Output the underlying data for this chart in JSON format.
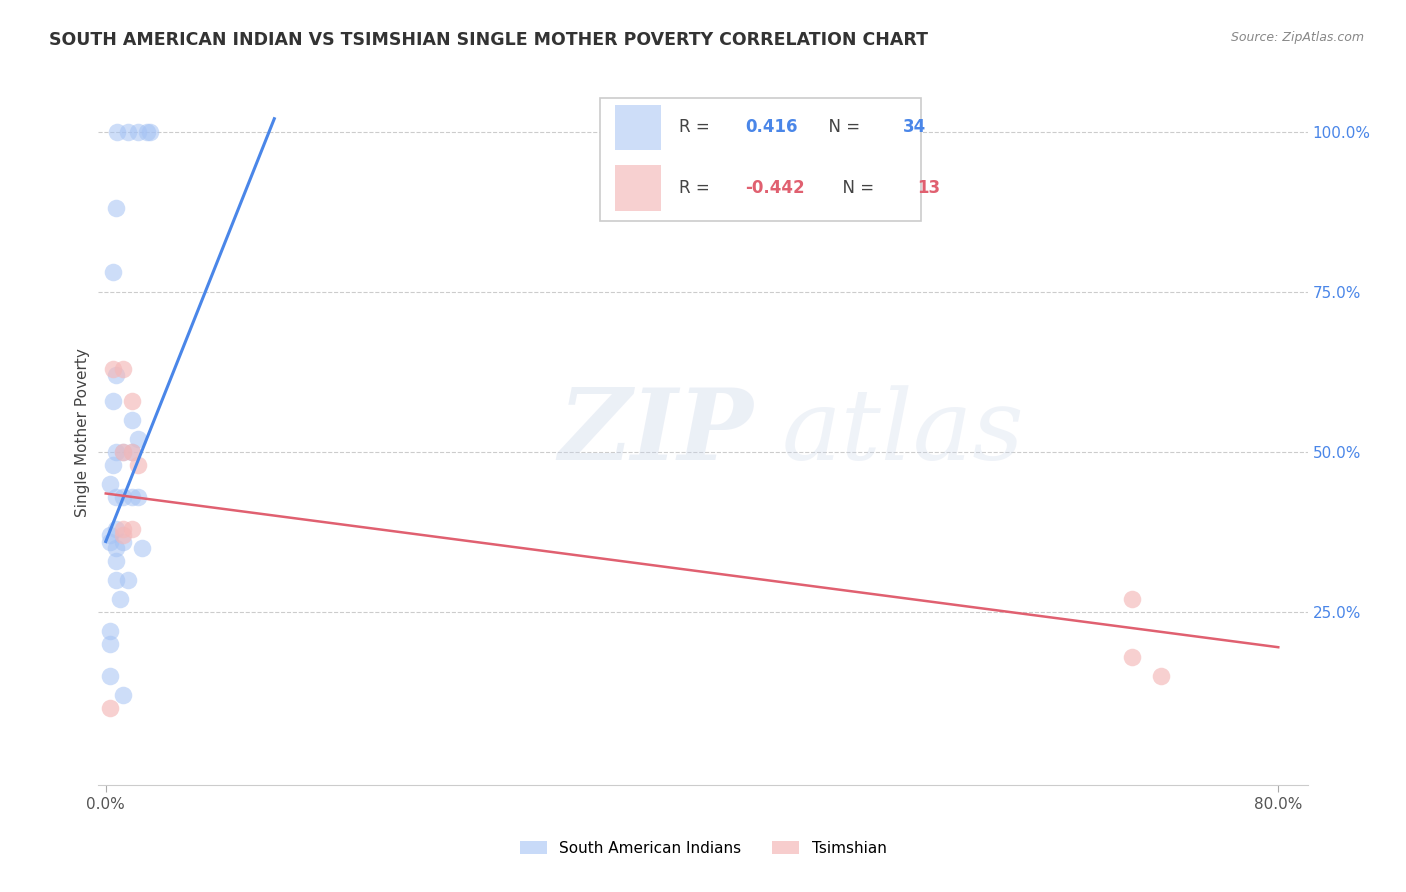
{
  "title": "SOUTH AMERICAN INDIAN VS TSIMSHIAN SINGLE MOTHER POVERTY CORRELATION CHART",
  "source": "Source: ZipAtlas.com",
  "ylabel": "Single Mother Poverty",
  "ytick_labels": [
    "100.0%",
    "75.0%",
    "50.0%",
    "25.0%"
  ],
  "ytick_positions": [
    1.0,
    0.75,
    0.5,
    0.25
  ],
  "xtick_labels": [
    "0.0%",
    "80.0%"
  ],
  "xtick_positions": [
    0.0,
    0.8
  ],
  "xlim": [
    -0.005,
    0.82
  ],
  "ylim": [
    -0.02,
    1.08
  ],
  "blue_r": "0.416",
  "blue_n": "34",
  "pink_r": "-0.442",
  "pink_n": "13",
  "blue_scatter_color": "#a4c2f4",
  "pink_scatter_color": "#f4b8b8",
  "blue_line_color": "#4a86e8",
  "pink_line_color": "#e06070",
  "legend_label_blue": "South American Indians",
  "legend_label_pink": "Tsimshian",
  "blue_r_color": "#4a86e8",
  "blue_n_color": "#4a86e8",
  "pink_r_color": "#e06070",
  "pink_n_color": "#e06070",
  "blue_scatter_x": [
    0.008,
    0.015,
    0.022,
    0.028,
    0.03,
    0.007,
    0.005,
    0.007,
    0.005,
    0.018,
    0.022,
    0.007,
    0.012,
    0.018,
    0.005,
    0.003,
    0.007,
    0.012,
    0.018,
    0.022,
    0.007,
    0.003,
    0.003,
    0.012,
    0.007,
    0.025,
    0.007,
    0.007,
    0.015,
    0.01,
    0.003,
    0.003,
    0.003,
    0.012
  ],
  "blue_scatter_y": [
    1.0,
    1.0,
    1.0,
    1.0,
    1.0,
    0.88,
    0.78,
    0.62,
    0.58,
    0.55,
    0.52,
    0.5,
    0.5,
    0.5,
    0.48,
    0.45,
    0.43,
    0.43,
    0.43,
    0.43,
    0.38,
    0.37,
    0.36,
    0.36,
    0.35,
    0.35,
    0.33,
    0.3,
    0.3,
    0.27,
    0.22,
    0.2,
    0.15,
    0.12
  ],
  "pink_scatter_x": [
    0.005,
    0.012,
    0.018,
    0.012,
    0.018,
    0.022,
    0.012,
    0.018,
    0.012,
    0.003,
    0.7,
    0.7,
    0.72
  ],
  "pink_scatter_y": [
    0.63,
    0.63,
    0.58,
    0.5,
    0.5,
    0.48,
    0.38,
    0.38,
    0.37,
    0.1,
    0.27,
    0.18,
    0.15
  ],
  "blue_trend_x": [
    0.0,
    0.115
  ],
  "blue_trend_y": [
    0.36,
    1.02
  ],
  "pink_trend_x": [
    0.0,
    0.8
  ],
  "pink_trend_y": [
    0.435,
    0.195
  ],
  "grid_color": "#cccccc",
  "background_color": "#ffffff",
  "watermark_color_zip": "#c8d4e8",
  "watermark_color_atlas": "#c8d4e8"
}
